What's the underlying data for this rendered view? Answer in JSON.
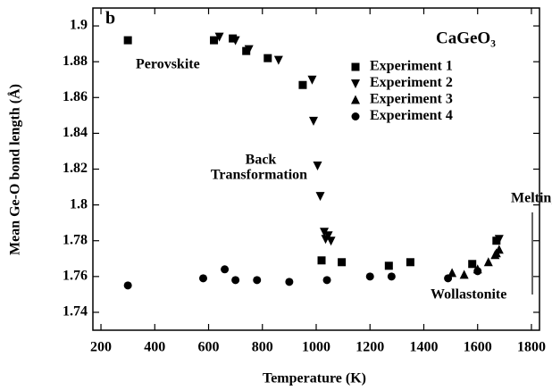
{
  "chart_data": {
    "type": "scatter",
    "panel_label": "b",
    "compound": "CaGeO₃",
    "x_label": "Temperature (K)",
    "y_label": "Mean Ge-O bond length (Å)",
    "annotations": [
      "Perovskite",
      "Back",
      "Transformation",
      "Melting",
      "Wollastonite"
    ],
    "xlim": [
      170,
      1830
    ],
    "xticks": [
      200,
      400,
      600,
      800,
      1000,
      1200,
      1400,
      1600,
      1800
    ],
    "ylim": [
      1.73,
      1.91
    ],
    "yticks": [
      1.74,
      1.76,
      1.78,
      1.8,
      1.82,
      1.84,
      1.86,
      1.88,
      1.9
    ],
    "series": [
      {
        "name": "Experiment 1",
        "color": "#000000",
        "marker": "square",
        "x": [
          300,
          620,
          690,
          740,
          820,
          950,
          1020,
          1095,
          1270,
          1350,
          1580,
          1670
        ],
        "values": [
          1.892,
          1.892,
          1.893,
          1.886,
          1.882,
          1.867,
          1.769,
          1.768,
          1.766,
          1.768,
          1.767,
          1.78
        ]
      },
      {
        "name": "Experiment 2",
        "color": "#000000",
        "marker": "triangle-down",
        "x": [
          640,
          700,
          750,
          860,
          985,
          990,
          1005,
          1015,
          1030,
          1035,
          1045,
          1055,
          1680
        ],
        "values": [
          1.894,
          1.892,
          1.887,
          1.881,
          1.87,
          1.847,
          1.822,
          1.805,
          1.785,
          1.781,
          1.783,
          1.78,
          1.781
        ]
      },
      {
        "name": "Experiment 3",
        "color": "#000000",
        "marker": "triangle-up",
        "x": [
          1505,
          1550,
          1600,
          1640,
          1665,
          1670,
          1680
        ],
        "values": [
          1.762,
          1.761,
          1.764,
          1.768,
          1.772,
          1.773,
          1.775
        ]
      },
      {
        "name": "Experiment 4",
        "color": "#000000",
        "marker": "circle",
        "x": [
          300,
          580,
          660,
          700,
          780,
          900,
          1040,
          1200,
          1280,
          1490,
          1600
        ],
        "values": [
          1.755,
          1.759,
          1.764,
          1.758,
          1.758,
          1.757,
          1.758,
          1.76,
          1.76,
          1.759,
          1.763
        ]
      }
    ]
  }
}
